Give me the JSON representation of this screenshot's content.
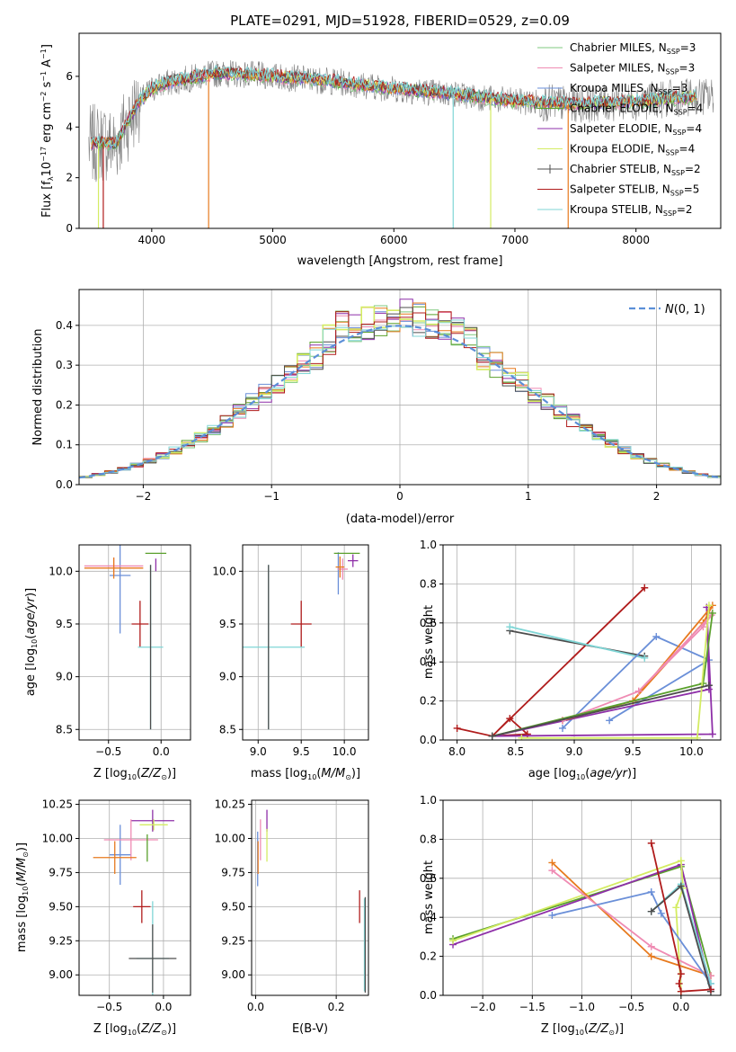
{
  "figure_title": "PLATE=0291, MJD=51928, FIBERID=0529, z=0.09",
  "colors": {
    "Chabrier MILES": "#7fc97f",
    "Salpeter MILES": "#ef8bb3",
    "Kroupa MILES": "#6a8fd8",
    "Chabrier ELODIE": "#5aa02c",
    "Salpeter ELODIE": "#8e2fa8",
    "Kroupa ELODIE": "#d4ec63",
    "Chabrier STELIB": "#4d4d4d",
    "Salpeter STELIB": "#b01c1c",
    "Kroupa STELIB": "#7fd6d6",
    "orange": "#e77a1e",
    "spectrum": "#808080",
    "gaussian": "#5b8fd8",
    "grid": "#b0b0b0"
  },
  "chart_data": [
    {
      "id": "spectrum",
      "type": "line",
      "title": "PLATE=0291, MJD=51928, FIBERID=0529, z=0.09",
      "xlabel": "wavelength [Angstrom, rest frame]",
      "ylabel": "Flux [f_λ10^-17 erg cm^-2 s^-1 A^-1]",
      "xlim": [
        3400,
        8700
      ],
      "ylim": [
        0,
        7.7
      ],
      "xticks": [
        4000,
        5000,
        6000,
        7000,
        8000
      ],
      "yticks": [
        0,
        2,
        4,
        6
      ],
      "grid": false,
      "legend_position": "top-right",
      "legend": [
        {
          "label": "Chabrier MILES, N",
          "sub": "SSP",
          "tail": "=3",
          "color_key": "Chabrier MILES"
        },
        {
          "label": "Salpeter MILES, N",
          "sub": "SSP",
          "tail": "=3",
          "color_key": "Salpeter MILES"
        },
        {
          "label": "Kroupa MILES, N",
          "sub": "SSP",
          "tail": "=3",
          "color_key": "Kroupa MILES"
        },
        {
          "label": "Chabrier ELODIE, N",
          "sub": "SSP",
          "tail": "=4",
          "color_key": "Chabrier ELODIE"
        },
        {
          "label": "Salpeter ELODIE, N",
          "sub": "SSP",
          "tail": "=4",
          "color_key": "Salpeter ELODIE"
        },
        {
          "label": "Kroupa ELODIE, N",
          "sub": "SSP",
          "tail": "=4",
          "color_key": "Kroupa ELODIE"
        },
        {
          "label": "Chabrier STELIB, N",
          "sub": "SSP",
          "tail": "=2",
          "color_key": "Chabrier STELIB"
        },
        {
          "label": "Salpeter STELIB, N",
          "sub": "SSP",
          "tail": "=5",
          "color_key": "Salpeter STELIB"
        },
        {
          "label": "Kroupa STELIB, N",
          "sub": "SSP",
          "tail": "=2",
          "color_key": "Kroupa STELIB"
        }
      ],
      "model_continuum": {
        "x": [
          3500,
          3600,
          3700,
          3800,
          3900,
          4000,
          4100,
          4200,
          4300,
          4400,
          4500,
          4700,
          5000,
          5500,
          6000,
          6500,
          7000,
          7500,
          8000,
          8500
        ],
        "y": [
          3.3,
          3.4,
          3.3,
          4.2,
          5.0,
          5.5,
          5.7,
          5.8,
          5.9,
          6.0,
          6.1,
          6.1,
          6.0,
          5.8,
          5.5,
          5.3,
          5.0,
          4.9,
          5.0,
          5.2
        ]
      },
      "drops": [
        {
          "x": 3560,
          "color_key": "Kroupa ELODIE"
        },
        {
          "x": 4470,
          "color_key": "orange"
        },
        {
          "x": 6490,
          "color_key": "Kroupa STELIB"
        },
        {
          "x": 6800,
          "color_key": "Kroupa ELODIE"
        },
        {
          "x": 7440,
          "color_key": "orange"
        },
        {
          "x": 3600,
          "color_key": "Salpeter STELIB"
        }
      ]
    },
    {
      "id": "residuals",
      "type": "histogram",
      "xlabel": "(data-model)/error",
      "ylabel": "Normed distribution",
      "xlim": [
        -2.5,
        2.5
      ],
      "ylim": [
        0,
        0.49
      ],
      "xticks": [
        -2,
        -1,
        0,
        1,
        2
      ],
      "yticks": [
        0.0,
        0.1,
        0.2,
        0.3,
        0.4
      ],
      "grid": true,
      "legend_position": "top-right",
      "legend_label": "N(0,1)",
      "bin_width": 0.1
    },
    {
      "id": "age-vs-Z",
      "type": "errorbar",
      "xlabel": "Z [log10(Z/Z☉)]",
      "ylabel": "age [log10(age/yr)]",
      "xlim": [
        -0.78,
        0.28
      ],
      "ylim": [
        8.4,
        10.25
      ],
      "xticks": [
        -0.5,
        0.0
      ],
      "yticks": [
        8.5,
        9.0,
        9.5,
        10.0
      ],
      "grid": true,
      "points": [
        {
          "x": -0.2,
          "y": 9.5,
          "xerr": 0.08,
          "yerr": 0.22,
          "color_key": "Salpeter STELIB"
        },
        {
          "x": -0.1,
          "y": 9.28,
          "xerr": 0.12,
          "yerr": 0.78,
          "color_key": "Kroupa STELIB"
        },
        {
          "x": -0.1,
          "y": 9.28,
          "xerr": 0.0,
          "yerr": 0.78,
          "color_key": "Chabrier STELIB"
        },
        {
          "x": -0.39,
          "y": 9.96,
          "xerr": 0.1,
          "yerr": 0.55,
          "color_key": "Kroupa MILES"
        },
        {
          "x": -0.05,
          "y": 10.17,
          "xerr": 0.1,
          "yerr": 0.0,
          "color_key": "Chabrier ELODIE"
        },
        {
          "x": -0.05,
          "y": 10.06,
          "xerr": 0.0,
          "yerr": 0.06,
          "color_key": "Salpeter ELODIE"
        },
        {
          "x": -0.45,
          "y": 10.05,
          "xerr": 0.28,
          "yerr": 0.08,
          "color_key": "Salpeter MILES"
        },
        {
          "x": -0.45,
          "y": 10.03,
          "xerr": 0.28,
          "yerr": 0.1,
          "color_key": "orange"
        }
      ]
    },
    {
      "id": "age-vs-mass",
      "type": "errorbar",
      "xlabel": "mass [log10(M/M☉)]",
      "ylabel": "",
      "xlim": [
        8.82,
        10.28
      ],
      "ylim": [
        8.4,
        10.25
      ],
      "xticks": [
        9.0,
        9.5,
        10.0
      ],
      "yticks": [
        8.5,
        9.0,
        9.5,
        10.0
      ],
      "grid": true,
      "points": [
        {
          "x": 9.5,
          "y": 9.5,
          "xerr": 0.12,
          "yerr": 0.22,
          "color_key": "Salpeter STELIB"
        },
        {
          "x": 9.12,
          "y": 9.28,
          "xerr": 0.42,
          "yerr": 0.78,
          "color_key": "Kroupa STELIB"
        },
        {
          "x": 9.12,
          "y": 9.28,
          "xerr": 0.0,
          "yerr": 0.78,
          "color_key": "Chabrier STELIB"
        },
        {
          "x": 9.93,
          "y": 9.98,
          "xerr": 0.0,
          "yerr": 0.2,
          "color_key": "Kroupa MILES"
        },
        {
          "x": 10.03,
          "y": 10.17,
          "xerr": 0.15,
          "yerr": 0.0,
          "color_key": "Chabrier ELODIE"
        },
        {
          "x": 10.1,
          "y": 10.1,
          "xerr": 0.06,
          "yerr": 0.06,
          "color_key": "Salpeter ELODIE"
        },
        {
          "x": 9.98,
          "y": 10.02,
          "xerr": 0.06,
          "yerr": 0.1,
          "color_key": "Salpeter MILES"
        },
        {
          "x": 9.95,
          "y": 10.04,
          "xerr": 0.05,
          "yerr": 0.1,
          "color_key": "orange"
        }
      ]
    },
    {
      "id": "weight-vs-age",
      "type": "line",
      "xlabel": "age [log10(age/yr)]",
      "ylabel": "mass weight",
      "xlim": [
        7.88,
        10.25
      ],
      "ylim": [
        0,
        1.0
      ],
      "xticks": [
        8.0,
        8.5,
        9.0,
        9.5,
        10.0
      ],
      "yticks": [
        0.0,
        0.2,
        0.4,
        0.6,
        0.8,
        1.0
      ],
      "grid": true,
      "series": [
        {
          "color_key": "Salpeter STELIB",
          "x": [
            9.6,
            8.3,
            8.0,
            8.3,
            8.45,
            8.6,
            8.3
          ],
          "y": [
            0.78,
            0.02,
            0.06,
            0.02,
            0.11,
            0.03,
            0.02
          ]
        },
        {
          "color_key": "Chabrier STELIB",
          "x": [
            8.45,
            9.6
          ],
          "y": [
            0.56,
            0.43
          ]
        },
        {
          "color_key": "Kroupa STELIB",
          "x": [
            8.45,
            9.6
          ],
          "y": [
            0.58,
            0.42
          ]
        },
        {
          "color_key": "Kroupa MILES",
          "x": [
            8.9,
            9.7,
            10.15,
            9.3
          ],
          "y": [
            0.06,
            0.53,
            0.41,
            0.1
          ]
        },
        {
          "color_key": "Salpeter ELODIE",
          "x": [
            8.3,
            10.15,
            10.13,
            10.18,
            8.3
          ],
          "y": [
            0.02,
            0.26,
            0.68,
            0.03,
            0.02
          ]
        },
        {
          "color_key": "orange",
          "x": [
            8.9,
            9.5,
            10.18,
            10.1,
            9.5
          ],
          "y": [
            0.1,
            0.2,
            0.69,
            0.6,
            0.2
          ]
        },
        {
          "color_key": "Salpeter MILES",
          "x": [
            8.9,
            9.55,
            10.17,
            10.1,
            9.55
          ],
          "y": [
            0.1,
            0.25,
            0.64,
            0.58,
            0.25
          ]
        },
        {
          "color_key": "Chabrier ELODIE",
          "x": [
            8.3,
            10.1,
            10.18
          ],
          "y": [
            0.02,
            0.29,
            0.65
          ]
        },
        {
          "color_key": "Kroupa ELODIE",
          "x": [
            8.55,
            10.05,
            10.15
          ],
          "y": [
            0.01,
            0.01,
            0.69
          ]
        },
        {
          "color_key": "Chabrier STELIB",
          "x": [
            8.3,
            10.15
          ],
          "y": [
            0.02,
            0.28
          ]
        }
      ]
    },
    {
      "id": "mass-vs-Z",
      "type": "errorbar",
      "xlabel": "Z [log10(Z/Z☉)]",
      "ylabel": "mass [log10(M/M☉)]",
      "xlim": [
        -0.78,
        0.25
      ],
      "ylim": [
        8.85,
        10.28
      ],
      "xticks": [
        -0.5,
        0.0
      ],
      "yticks": [
        9.0,
        9.25,
        9.5,
        9.75,
        10.0,
        10.25
      ],
      "grid": true,
      "points": [
        {
          "x": -0.2,
          "y": 9.5,
          "xerr": 0.08,
          "yerr": 0.12,
          "color_key": "Salpeter STELIB"
        },
        {
          "x": -0.1,
          "y": 9.12,
          "xerr": 0.15,
          "yerr": 0.42,
          "color_key": "Kroupa STELIB"
        },
        {
          "x": -0.1,
          "y": 9.12,
          "xerr": 0.22,
          "yerr": 0.25,
          "color_key": "Chabrier STELIB"
        },
        {
          "x": -0.4,
          "y": 9.88,
          "xerr": 0.1,
          "yerr": 0.22,
          "color_key": "Kroupa MILES"
        },
        {
          "x": -0.1,
          "y": 10.13,
          "xerr": 0.2,
          "yerr": 0.08,
          "color_key": "Salpeter ELODIE"
        },
        {
          "x": -0.09,
          "y": 10.1,
          "xerr": 0.13,
          "yerr": 0.04,
          "color_key": "Kroupa ELODIE"
        },
        {
          "x": -0.3,
          "y": 9.99,
          "xerr": 0.25,
          "yerr": 0.15,
          "color_key": "Salpeter MILES"
        },
        {
          "x": -0.45,
          "y": 9.86,
          "xerr": 0.2,
          "yerr": 0.12,
          "color_key": "orange"
        },
        {
          "x": -0.15,
          "y": 9.93,
          "xerr": 0.0,
          "yerr": 0.1,
          "color_key": "Chabrier ELODIE"
        }
      ]
    },
    {
      "id": "mass-vs-EBV",
      "type": "errorbar",
      "xlabel": "E(B-V)",
      "ylabel": "",
      "xlim": [
        -0.01,
        0.28
      ],
      "ylim": [
        8.85,
        10.28
      ],
      "xticks": [
        0.0,
        0.2
      ],
      "yticks": [
        9.0,
        9.25,
        9.5,
        9.75,
        10.0,
        10.25
      ],
      "grid": true,
      "points": [
        {
          "x": 0.258,
          "y": 9.5,
          "xerr": 0.0,
          "yerr": 0.12,
          "color_key": "Salpeter STELIB"
        },
        {
          "x": 0.27,
          "y": 9.22,
          "xerr": 0.0,
          "yerr": 0.34,
          "color_key": "Kroupa STELIB"
        },
        {
          "x": 0.272,
          "y": 9.22,
          "xerr": 0.0,
          "yerr": 0.35,
          "color_key": "Chabrier STELIB"
        },
        {
          "x": 0.005,
          "y": 9.85,
          "xerr": 0.0,
          "yerr": 0.2,
          "color_key": "Kroupa MILES"
        },
        {
          "x": 0.028,
          "y": 10.13,
          "xerr": 0.0,
          "yerr": 0.08,
          "color_key": "Salpeter ELODIE"
        },
        {
          "x": 0.028,
          "y": 9.95,
          "xerr": 0.0,
          "yerr": 0.12,
          "color_key": "Kroupa ELODIE"
        },
        {
          "x": 0.012,
          "y": 9.99,
          "xerr": 0.0,
          "yerr": 0.15,
          "color_key": "Salpeter MILES"
        },
        {
          "x": 0.006,
          "y": 9.86,
          "xerr": 0.0,
          "yerr": 0.12,
          "color_key": "orange"
        }
      ]
    },
    {
      "id": "weight-vs-Z",
      "type": "line",
      "xlabel": "Z [log10(Z/Z☉)]",
      "ylabel": "mass weight",
      "xlim": [
        -2.4,
        0.4
      ],
      "ylim": [
        0,
        1.0
      ],
      "xticks": [
        -2.0,
        -1.5,
        -1.0,
        -0.5,
        0.0
      ],
      "yticks": [
        0.0,
        0.2,
        0.4,
        0.6,
        0.8,
        1.0
      ],
      "grid": true,
      "series": [
        {
          "color_key": "Chabrier ELODIE",
          "x": [
            -2.3,
            0.0,
            0.3
          ],
          "y": [
            0.29,
            0.66,
            0.1
          ]
        },
        {
          "color_key": "Salpeter ELODIE",
          "x": [
            -2.3,
            0.0,
            0.3
          ],
          "y": [
            0.26,
            0.67,
            0.03
          ]
        },
        {
          "color_key": "Kroupa ELODIE",
          "x": [
            -2.3,
            0.0,
            0.02,
            -0.05,
            0.0
          ],
          "y": [
            0.28,
            0.69,
            0.55,
            0.45,
            0.02
          ]
        },
        {
          "color_key": "orange",
          "x": [
            -1.3,
            -0.3,
            0.3
          ],
          "y": [
            0.68,
            0.2,
            0.1
          ]
        },
        {
          "color_key": "Salpeter MILES",
          "x": [
            -1.3,
            -0.3,
            0.3
          ],
          "y": [
            0.64,
            0.25,
            0.1
          ]
        },
        {
          "color_key": "Kroupa MILES",
          "x": [
            -1.3,
            -0.3,
            -0.2,
            0.3
          ],
          "y": [
            0.41,
            0.53,
            0.42,
            0.06
          ]
        },
        {
          "color_key": "Kroupa STELIB",
          "x": [
            -0.3,
            0.0,
            0.3
          ],
          "y": [
            0.43,
            0.57,
            0.06
          ]
        },
        {
          "color_key": "Chabrier STELIB",
          "x": [
            -0.3,
            0.0,
            0.3
          ],
          "y": [
            0.43,
            0.56,
            0.02
          ]
        },
        {
          "color_key": "Salpeter STELIB",
          "x": [
            -0.3,
            0.0,
            -0.02,
            0.0,
            0.3
          ],
          "y": [
            0.78,
            0.11,
            0.06,
            0.02,
            0.03
          ]
        }
      ]
    }
  ]
}
